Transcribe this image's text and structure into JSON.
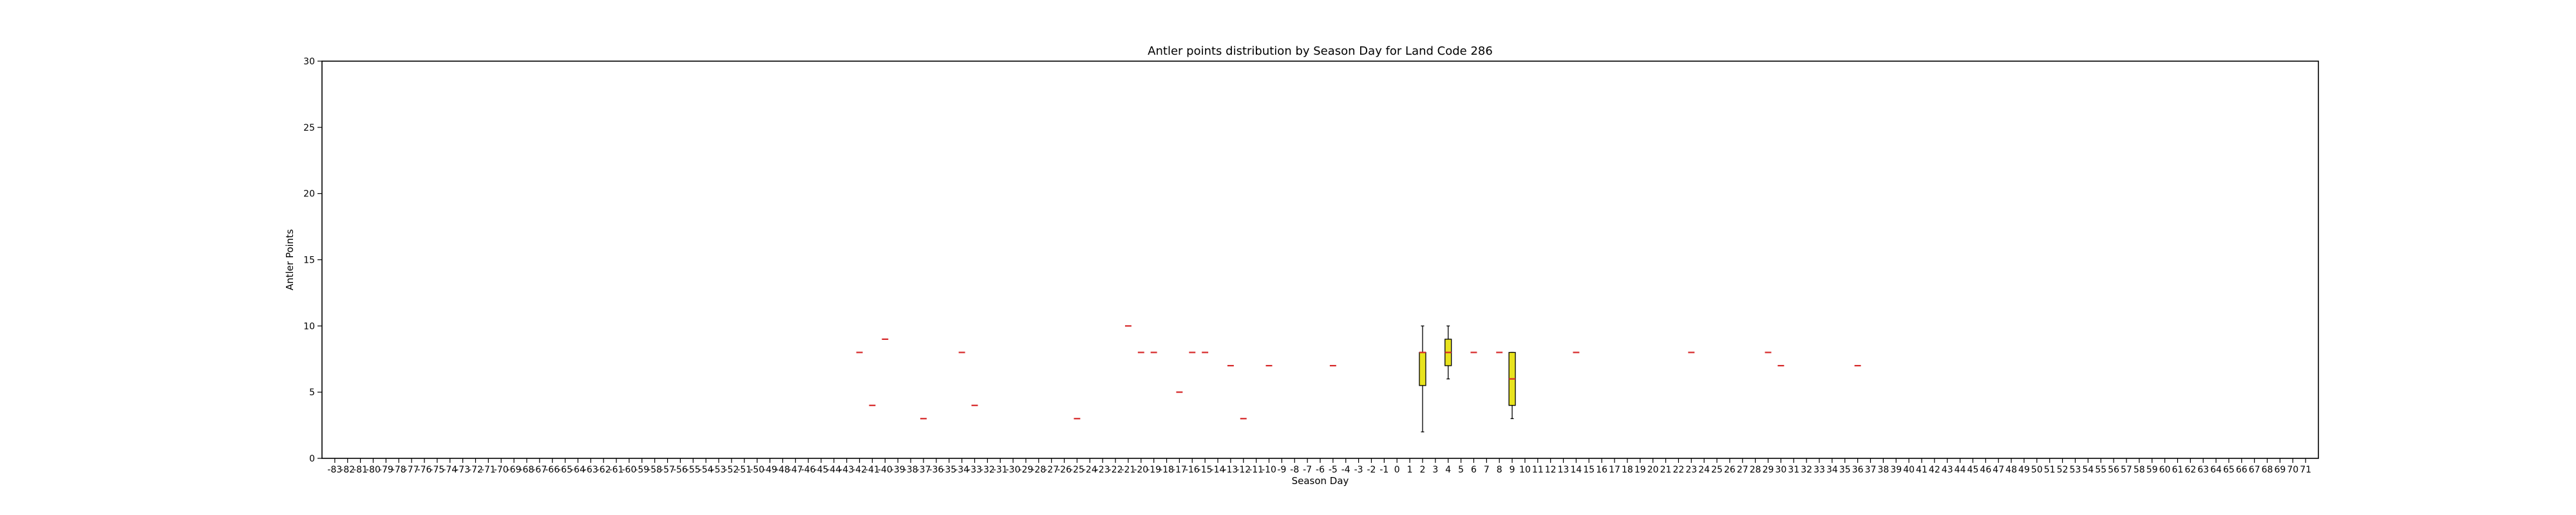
{
  "chart_data": {
    "type": "box",
    "title": "Antler points distribution by Season Day for Land Code 286",
    "xlabel": "Season Day",
    "ylabel": "Antler Points",
    "x_range": [
      -83,
      71
    ],
    "ylim": [
      0,
      30
    ],
    "yticks": [
      0,
      5,
      10,
      15,
      20,
      25,
      30
    ],
    "grid": false,
    "colors": {
      "box_fill": "#e8e31e",
      "median": "#d62728",
      "outline": "#000000"
    },
    "boxes": [
      {
        "x": -42,
        "median": 8
      },
      {
        "x": -41,
        "median": 4
      },
      {
        "x": -40,
        "median": 9
      },
      {
        "x": -37,
        "median": 3
      },
      {
        "x": -34,
        "median": 8
      },
      {
        "x": -33,
        "median": 4
      },
      {
        "x": -25,
        "median": 3
      },
      {
        "x": -21,
        "median": 10
      },
      {
        "x": -20,
        "median": 8
      },
      {
        "x": -19,
        "median": 8
      },
      {
        "x": -17,
        "median": 5
      },
      {
        "x": -16,
        "median": 8
      },
      {
        "x": -15,
        "median": 8
      },
      {
        "x": -13,
        "median": 7
      },
      {
        "x": -12,
        "median": 3
      },
      {
        "x": -10,
        "median": 7
      },
      {
        "x": -5,
        "median": 7
      },
      {
        "x": 2,
        "whislo": 2,
        "q1": 5.5,
        "median": 8,
        "q3": 8,
        "whishi": 10
      },
      {
        "x": 4,
        "whislo": 6,
        "q1": 7,
        "median": 8,
        "q3": 9,
        "whishi": 10
      },
      {
        "x": 6,
        "median": 8
      },
      {
        "x": 8,
        "median": 8
      },
      {
        "x": 9,
        "whislo": 3,
        "q1": 4,
        "median": 6,
        "q3": 8,
        "whishi": 8
      },
      {
        "x": 14,
        "median": 8
      },
      {
        "x": 23,
        "median": 8
      },
      {
        "x": 29,
        "median": 8
      },
      {
        "x": 30,
        "median": 7
      },
      {
        "x": 36,
        "median": 7
      }
    ]
  }
}
